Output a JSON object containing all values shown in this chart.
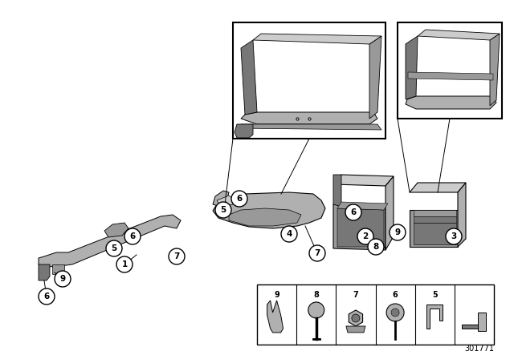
{
  "background_color": "#ffffff",
  "diagram_number": "301771",
  "parts_color": "#b0b0b0",
  "parts_mid": "#999999",
  "parts_dark": "#777777",
  "parts_light": "#cccccc"
}
